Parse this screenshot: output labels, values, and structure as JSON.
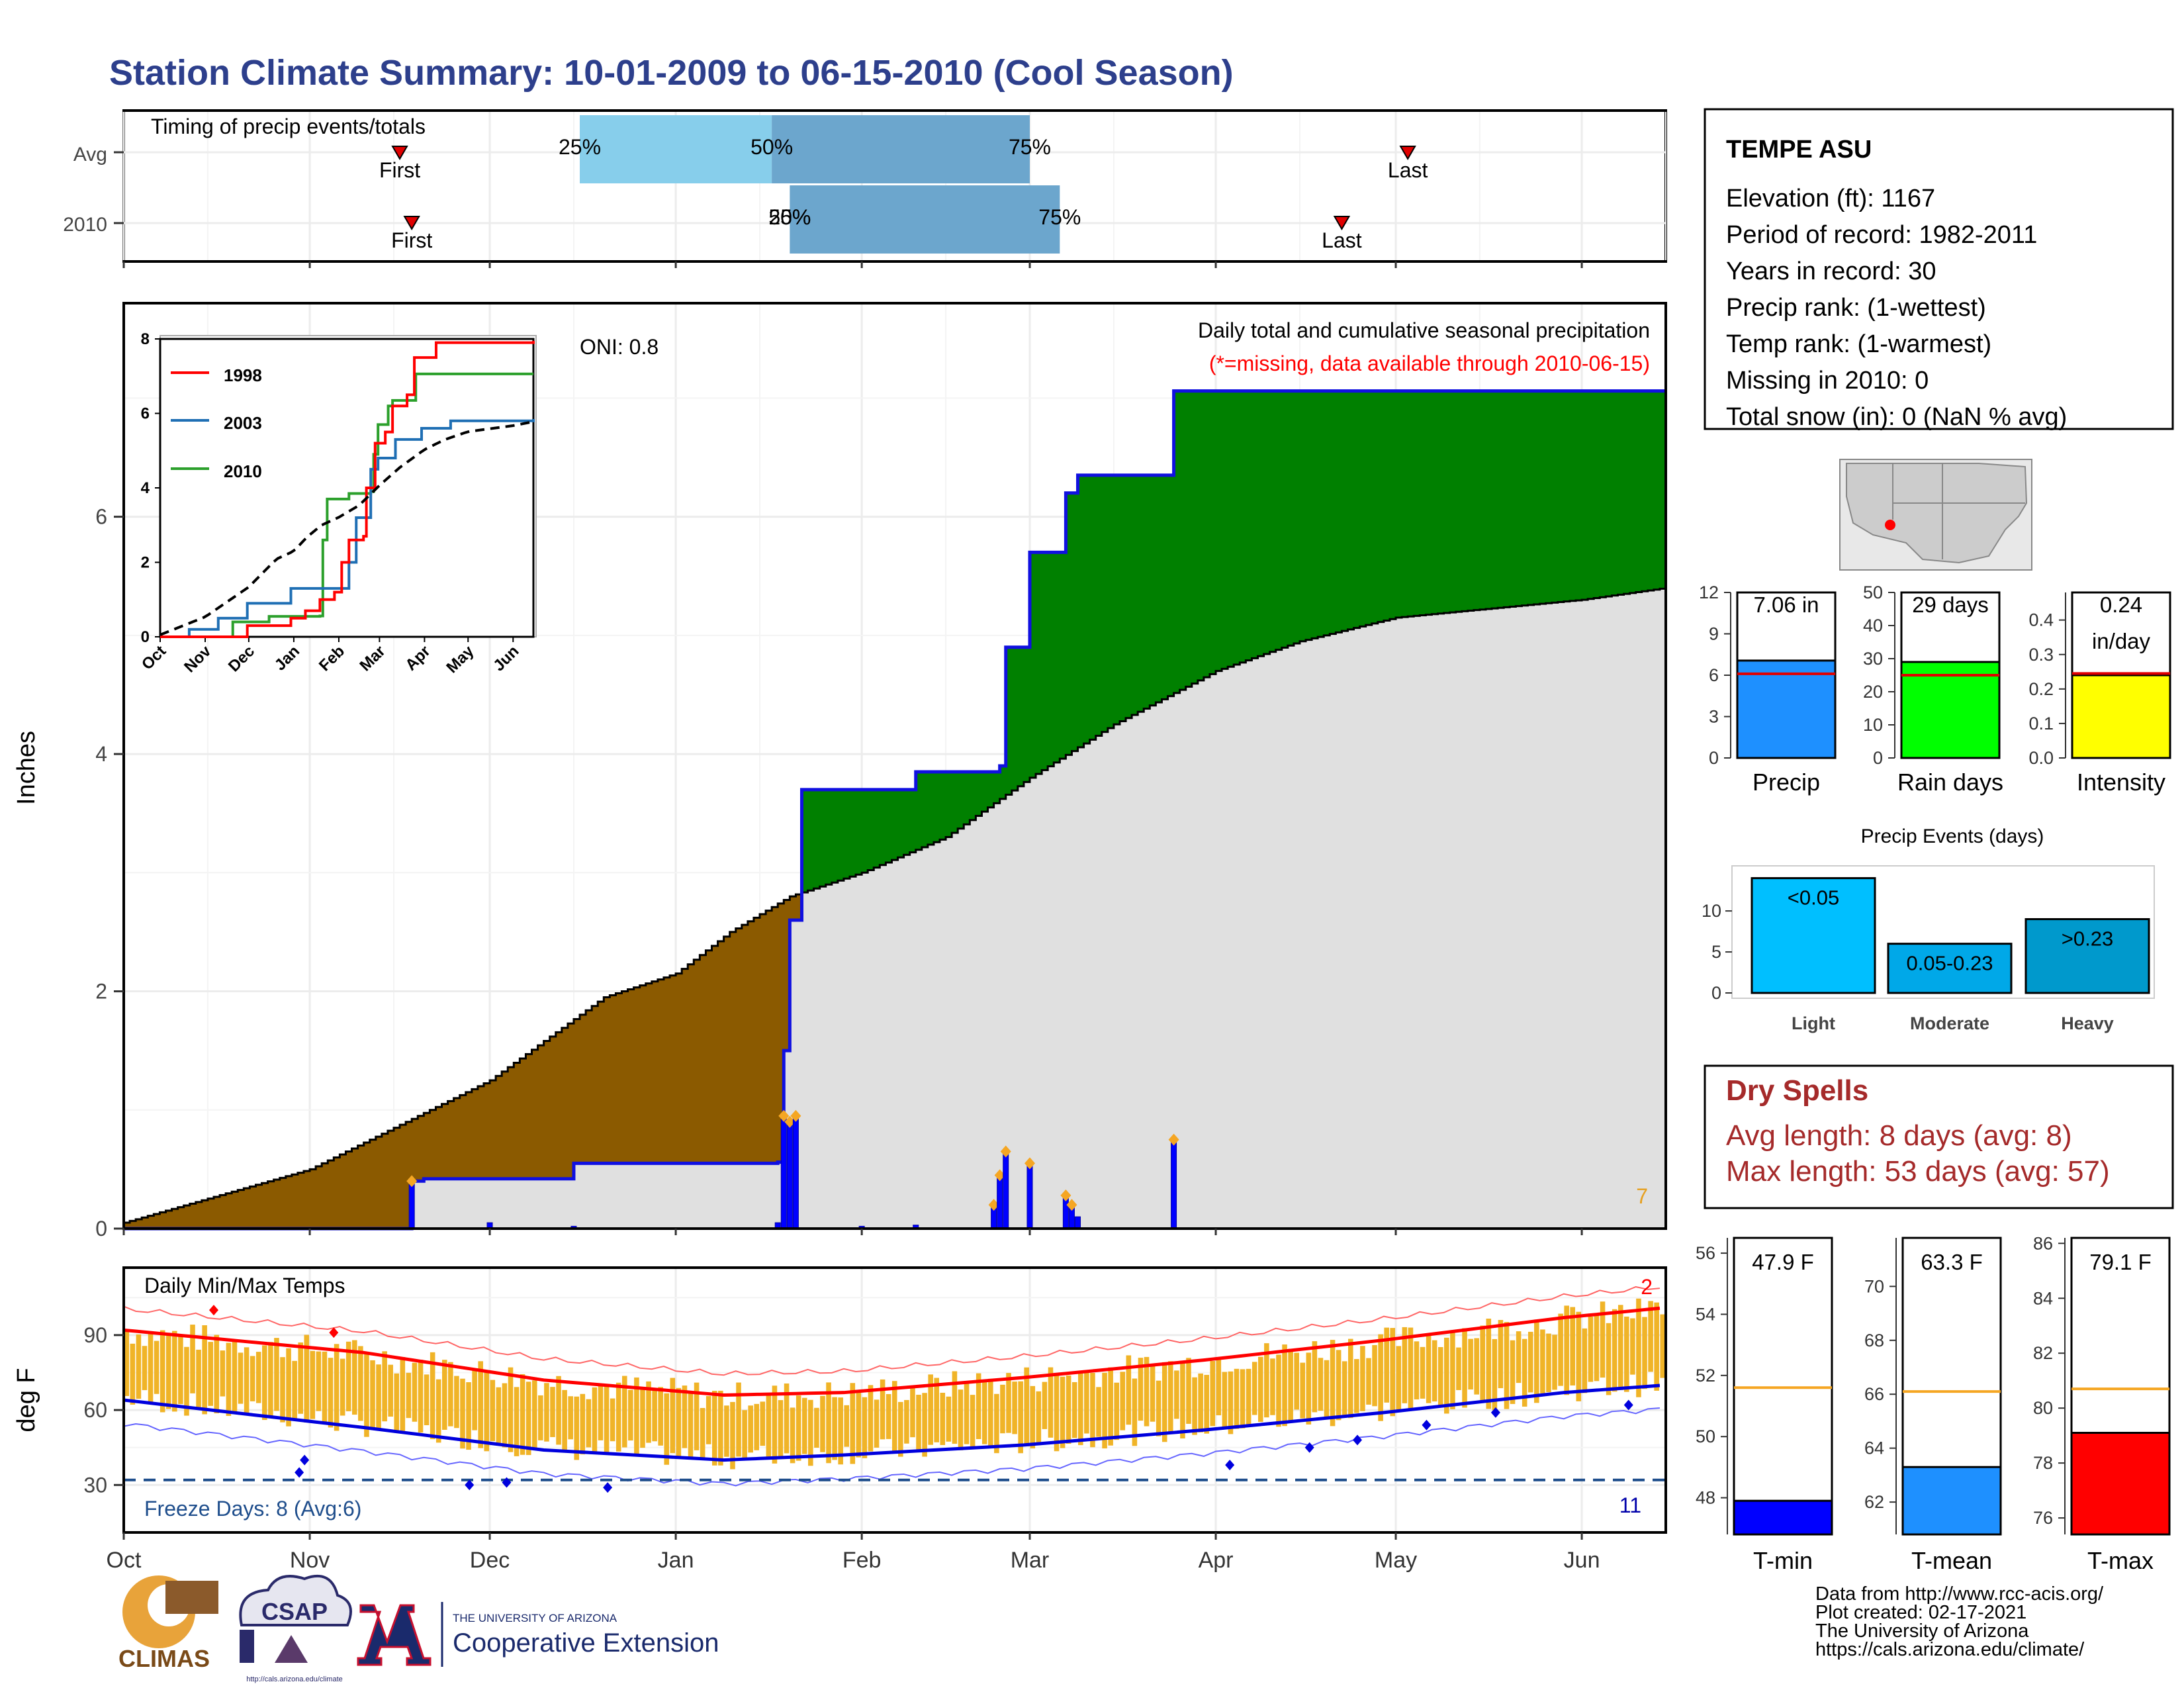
{
  "title": "Station Climate Summary: 10-01-2009 to 06-15-2010 (Cool Season)",
  "colors": {
    "title": "#2d3f8c",
    "precip_area_before": "#8b5a00",
    "precip_area_after": "#008000",
    "avg_area": "#e0e0e0",
    "daily_bar": "#0000ff",
    "temp_bar": "#f0b428",
    "tmax_line": "#ff0000",
    "tmin_line": "#0000dd",
    "dry_spell_text": "#a52a2a",
    "light_bar": "#00bfff",
    "moderate_bar": "#00a8e8",
    "heavy_bar": "#0099cc"
  },
  "timing_panel": {
    "label": "Timing of precip events/totals",
    "rows": [
      "Avg",
      "2010"
    ],
    "first_label": "First",
    "last_label": "Last",
    "avg": {
      "first": "2009-11-16",
      "p25": "2009-12-16",
      "p50": "2010-01-17",
      "p75": "2010-03-01",
      "last": "2010-05-03"
    },
    "season2010": {
      "first": "2009-11-18",
      "p25": "2010-01-20",
      "p50": "2010-01-20",
      "p75": "2010-03-06",
      "last": "2010-04-22"
    },
    "pct_labels": [
      "25%",
      "50%",
      "75%"
    ]
  },
  "precip_panel": {
    "ylabel": "Inches",
    "yticks": [
      "0",
      "2",
      "4",
      "6"
    ],
    "oni": "ONI: 0.8",
    "title": "Daily total and cumulative seasonal precipitation",
    "subtitle": "(*=missing, data available through 2010-06-15)",
    "missing_count": "7",
    "inset": {
      "series": [
        {
          "name": "1998",
          "color": "#ff0000"
        },
        {
          "name": "2003",
          "color": "#1f6fb4"
        },
        {
          "name": "2010",
          "color": "#2ca02c"
        }
      ],
      "months": [
        "Oct",
        "Nov",
        "Dec",
        "Jan",
        "Feb",
        "Mar",
        "Apr",
        "May",
        "Jun"
      ],
      "yticks": [
        "0",
        "2",
        "4",
        "6",
        "8"
      ]
    }
  },
  "temp_panel": {
    "label": "Daily Min/Max Temps",
    "ylabel": "deg F",
    "yticks": [
      "30",
      "60",
      "90"
    ],
    "freeze_label": "Freeze Days: 8 (Avg:6)",
    "top_count": "2",
    "bottom_count": "11"
  },
  "x_months": [
    "Oct",
    "Nov",
    "Dec",
    "Jan",
    "Feb",
    "Mar",
    "Apr",
    "May",
    "Jun"
  ],
  "station": {
    "name": "TEMPE ASU",
    "lines": [
      "Elevation (ft): 1167",
      "Period of record: 1982-2011",
      "Years in record: 30",
      "Precip rank:  (1-wettest)",
      "Temp rank:  (1-warmest)",
      "Missing in 2010: 0",
      "Total snow (in): 0 (NaN % avg)"
    ]
  },
  "summary_bars": [
    {
      "label": "Precip",
      "value_text": "7.06 in",
      "value": 7.06,
      "avg": 6.1,
      "ymax": 12,
      "ticks": [
        "0",
        "3",
        "6",
        "9",
        "12"
      ],
      "color": "#1e90ff"
    },
    {
      "label": "Rain days",
      "value_text": "29 days",
      "value": 29,
      "avg": 25,
      "ymax": 50,
      "ticks": [
        "0",
        "10",
        "20",
        "30",
        "40",
        "50"
      ],
      "color": "#00ff00"
    },
    {
      "label": "Intensity",
      "value_text": "0.24\nin/day",
      "value": 0.24,
      "avg": 0.245,
      "ymax": 0.48,
      "ticks": [
        "0.0",
        "0.1",
        "0.2",
        "0.3",
        "0.4"
      ],
      "color": "#ffff00"
    }
  ],
  "precip_events": {
    "title": "Precip Events (days)",
    "yticks": [
      "0",
      "5",
      "10"
    ],
    "categories": [
      "Light",
      "Moderate",
      "Heavy"
    ],
    "labels": [
      "<0.05",
      "0.05-0.23",
      ">0.23"
    ],
    "values": [
      14,
      6,
      9
    ]
  },
  "dry_spells": {
    "title": "Dry Spells",
    "avg_length": "Avg length: 8 days (avg: 8)",
    "max_length": "Max length: 53 days (avg: 57)"
  },
  "temp_bars": [
    {
      "label": "T-min",
      "value_text": "47.9 F",
      "value": 47.9,
      "avg": 51.6,
      "ymin": 46.8,
      "ymax": 56.5,
      "ticks": [
        "48",
        "50",
        "52",
        "54",
        "56"
      ],
      "color": "#0000ff"
    },
    {
      "label": "T-mean",
      "value_text": "63.3 F",
      "value": 63.3,
      "avg": 66.1,
      "ymin": 60.8,
      "ymax": 71.8,
      "ticks": [
        "62",
        "64",
        "66",
        "68",
        "70"
      ],
      "color": "#1e90ff"
    },
    {
      "label": "T-max",
      "value_text": "79.1 F",
      "value": 79.1,
      "avg": 80.7,
      "ymin": 75.4,
      "ymax": 86.2,
      "ticks": [
        "76",
        "78",
        "80",
        "82",
        "84",
        "86"
      ],
      "color": "#ff0000"
    }
  ],
  "footer": {
    "lines": [
      "Data from http://www.rcc-acis.org/",
      "Plot created: 02-17-2021",
      "The University of Arizona",
      "https://cals.arizona.edu/climate/"
    ],
    "logo_climas": "CLIMAS",
    "logo_csap": "CSAP",
    "logo_csap_url": "http://cals.arizona.edu/climate",
    "logo_ua_small": "THE UNIVERSITY OF ARIZONA",
    "logo_ua_big": "Cooperative Extension"
  },
  "chart_data": {
    "type": "area",
    "title": "Daily total and cumulative seasonal precipitation",
    "ylabel": "Inches",
    "x_range": [
      "2009-10-01",
      "2010-06-15"
    ],
    "ylim": [
      0,
      7.8
    ],
    "series": [
      {
        "name": "average cumulative",
        "points": [
          [
            "2009-10-01",
            0.05
          ],
          [
            "2009-11-01",
            0.5
          ],
          [
            "2009-12-01",
            1.25
          ],
          [
            "2009-12-20",
            1.95
          ],
          [
            "2010-01-01",
            2.15
          ],
          [
            "2010-01-10",
            2.5
          ],
          [
            "2010-01-20",
            2.8
          ],
          [
            "2010-02-01",
            3.0
          ],
          [
            "2010-02-15",
            3.3
          ],
          [
            "2010-03-01",
            3.8
          ],
          [
            "2010-03-15",
            4.25
          ],
          [
            "2010-04-01",
            4.7
          ],
          [
            "2010-04-15",
            4.95
          ],
          [
            "2010-05-01",
            5.15
          ],
          [
            "2010-06-01",
            5.3
          ],
          [
            "2010-06-15",
            5.4
          ]
        ]
      },
      {
        "name": "2010 cumulative",
        "points": [
          [
            "2009-10-01",
            0.0
          ],
          [
            "2009-11-17",
            0.0
          ],
          [
            "2009-11-18",
            0.4
          ],
          [
            "2009-11-20",
            0.42
          ],
          [
            "2009-12-15",
            0.55
          ],
          [
            "2010-01-18",
            0.56
          ],
          [
            "2010-01-19",
            1.5
          ],
          [
            "2010-01-20",
            2.6
          ],
          [
            "2010-01-22",
            3.7
          ],
          [
            "2010-02-10",
            3.85
          ],
          [
            "2010-02-24",
            3.9
          ],
          [
            "2010-02-25",
            4.9
          ],
          [
            "2010-03-01",
            5.7
          ],
          [
            "2010-03-07",
            6.2
          ],
          [
            "2010-03-09",
            6.35
          ],
          [
            "2010-03-24",
            6.35
          ],
          [
            "2010-03-25",
            7.06
          ],
          [
            "2010-06-15",
            7.06
          ]
        ]
      },
      {
        "name": "2010 daily",
        "points": [
          [
            "2009-11-18",
            0.4
          ],
          [
            "2009-12-01",
            0.05
          ],
          [
            "2009-12-15",
            0.02
          ],
          [
            "2010-01-18",
            0.05
          ],
          [
            "2010-01-19",
            0.95
          ],
          [
            "2010-01-20",
            0.9
          ],
          [
            "2010-01-21",
            0.95
          ],
          [
            "2010-02-01",
            0.02
          ],
          [
            "2010-02-10",
            0.03
          ],
          [
            "2010-02-23",
            0.2
          ],
          [
            "2010-02-24",
            0.45
          ],
          [
            "2010-02-25",
            0.65
          ],
          [
            "2010-03-01",
            0.55
          ],
          [
            "2010-03-07",
            0.28
          ],
          [
            "2010-03-08",
            0.2
          ],
          [
            "2010-03-09",
            0.1
          ],
          [
            "2010-03-25",
            0.75
          ]
        ]
      }
    ]
  }
}
